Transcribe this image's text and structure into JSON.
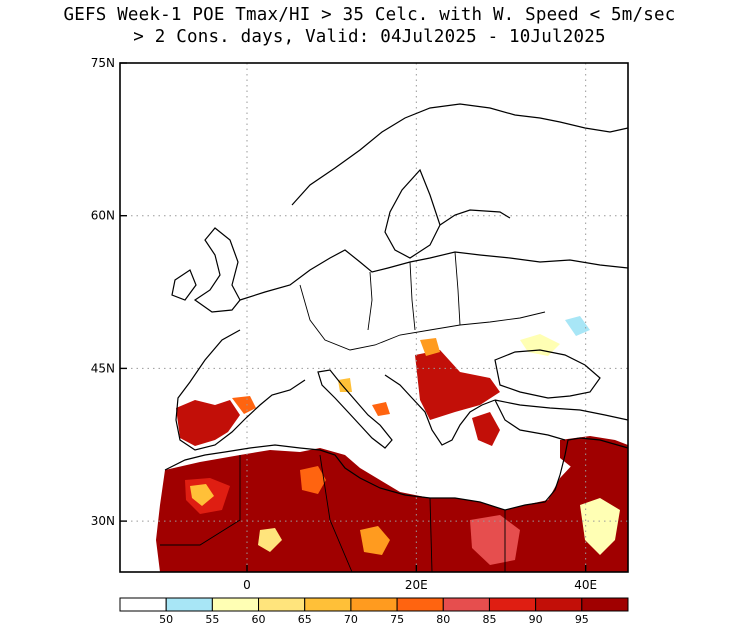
{
  "title": {
    "line1": "GEFS Week-1 POE Tmax/HI > 35 Celc. with W. Speed < 5m/sec",
    "line2": "> 2 Cons. days, Valid: 04Jul2025 - 10Jul2025"
  },
  "map": {
    "lon_range": [
      -15,
      45
    ],
    "lat_range": [
      25,
      75
    ],
    "lat_ticks": [
      {
        "value": 75,
        "label": "75N"
      },
      {
        "value": 60,
        "label": "60N"
      },
      {
        "value": 45,
        "label": "45N"
      },
      {
        "value": 30,
        "label": "30N"
      }
    ],
    "lon_ticks": [
      {
        "value": 0,
        "label": "0"
      },
      {
        "value": 20,
        "label": "20E"
      },
      {
        "value": 40,
        "label": "40E"
      }
    ],
    "grid": "dotted",
    "land_color": "#ffffff",
    "border_color": "#000000"
  },
  "colorbar": {
    "colors": [
      "#ffffff",
      "#a8e6f6",
      "#ffffb4",
      "#ffe47c",
      "#ffc038",
      "#ff9b1f",
      "#ff6410",
      "#e64e4e",
      "#df1e12",
      "#c20f08",
      "#a00000"
    ],
    "labels": [
      "50",
      "55",
      "60",
      "65",
      "70",
      "75",
      "80",
      "85",
      "90",
      "95"
    ]
  }
}
